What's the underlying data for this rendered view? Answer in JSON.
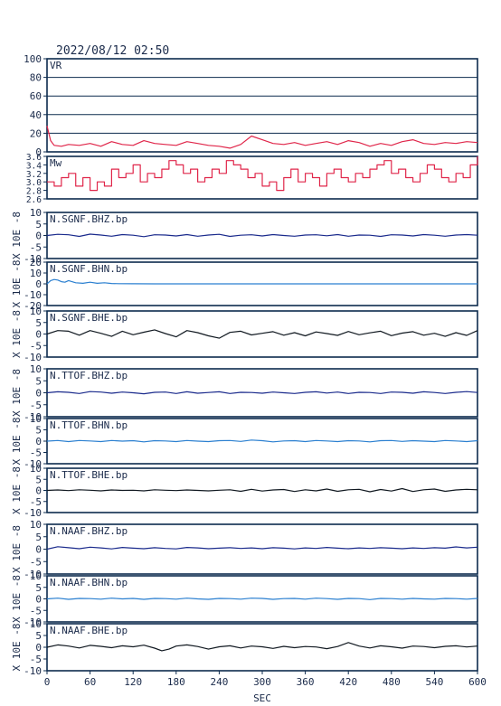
{
  "header": {
    "title": "2022/08/12  02:50"
  },
  "colors": {
    "frame": "#0d2b4e",
    "vr_line": "#e0264a",
    "mw_line": "#e0264a",
    "navy_trace": "#1a2a8c",
    "blue_trace": "#2a7fd0",
    "black_trace": "#101820",
    "gridline": "#0d2b4e"
  },
  "chart_data": [
    {
      "type": "line",
      "name": "VR",
      "label": "VR",
      "ylim": [
        0,
        100
      ],
      "yticks": [
        0,
        20,
        40,
        60,
        80,
        100
      ],
      "grid": true,
      "ylabel": "",
      "x": [
        0,
        5,
        10,
        20,
        30,
        45,
        60,
        75,
        90,
        105,
        120,
        135,
        150,
        165,
        180,
        195,
        210,
        225,
        240,
        255,
        270,
        285,
        300,
        315,
        330,
        345,
        360,
        375,
        390,
        405,
        420,
        435,
        450,
        465,
        480,
        495,
        510,
        525,
        540,
        555,
        570,
        585,
        600
      ],
      "values": [
        28,
        12,
        7,
        6,
        8,
        7,
        9,
        6,
        11,
        8,
        7,
        12,
        9,
        8,
        7,
        11,
        9,
        7,
        6,
        4,
        8,
        17,
        13,
        9,
        8,
        10,
        7,
        9,
        11,
        8,
        12,
        10,
        6,
        9,
        7,
        11,
        13,
        9,
        8,
        10,
        9,
        11,
        10
      ]
    },
    {
      "type": "line",
      "name": "Mw",
      "label": "Mw",
      "ylim": [
        2.6,
        3.6
      ],
      "yticks": [
        2.6,
        2.8,
        3.0,
        3.2,
        3.4,
        3.6
      ],
      "ytick_labels": [
        "2.6",
        "2.8",
        "3.0",
        "3.2",
        "3.4",
        "3.6"
      ],
      "ylabel": "",
      "x": [
        0,
        10,
        20,
        30,
        40,
        50,
        60,
        70,
        80,
        90,
        100,
        110,
        120,
        130,
        140,
        150,
        160,
        170,
        180,
        190,
        200,
        210,
        220,
        230,
        240,
        250,
        260,
        270,
        280,
        290,
        300,
        310,
        320,
        330,
        340,
        350,
        360,
        370,
        380,
        390,
        400,
        410,
        420,
        430,
        440,
        450,
        460,
        470,
        480,
        490,
        500,
        510,
        520,
        530,
        540,
        550,
        560,
        570,
        580,
        590,
        600
      ],
      "values": [
        3.0,
        2.9,
        3.1,
        3.2,
        2.9,
        3.1,
        2.8,
        3.0,
        2.9,
        3.3,
        3.1,
        3.2,
        3.4,
        3.0,
        3.2,
        3.1,
        3.3,
        3.5,
        3.4,
        3.2,
        3.3,
        3.0,
        3.1,
        3.3,
        3.2,
        3.5,
        3.4,
        3.3,
        3.1,
        3.2,
        2.9,
        3.0,
        2.8,
        3.1,
        3.3,
        3.0,
        3.2,
        3.1,
        2.9,
        3.2,
        3.3,
        3.1,
        3.0,
        3.2,
        3.1,
        3.3,
        3.4,
        3.5,
        3.2,
        3.3,
        3.1,
        3.0,
        3.2,
        3.4,
        3.3,
        3.1,
        3.0,
        3.2,
        3.1,
        3.4,
        3.6
      ]
    },
    {
      "type": "line",
      "name": "N.SGNF.BHZ.bp",
      "label": "N.SGNF.BHZ.bp",
      "ylim": [
        -10,
        10
      ],
      "yticks": [
        -10,
        -5,
        0,
        5,
        10
      ],
      "ylabel": "X 10E -8",
      "color_key": "navy_trace",
      "x": [
        0,
        15,
        30,
        45,
        60,
        75,
        90,
        105,
        120,
        135,
        150,
        165,
        180,
        195,
        210,
        225,
        240,
        255,
        270,
        285,
        300,
        315,
        330,
        345,
        360,
        375,
        390,
        405,
        420,
        435,
        450,
        465,
        480,
        495,
        510,
        525,
        540,
        555,
        570,
        585,
        600
      ],
      "values": [
        0,
        0.5,
        0.3,
        -0.4,
        0.6,
        0.2,
        -0.3,
        0.4,
        0.1,
        -0.5,
        0.3,
        0.2,
        -0.2,
        0.4,
        -0.3,
        0.2,
        0.5,
        -0.4,
        0.1,
        0.3,
        -0.2,
        0.4,
        0.0,
        -0.3,
        0.2,
        0.3,
        -0.1,
        0.4,
        -0.3,
        0.2,
        0.1,
        -0.4,
        0.3,
        0.2,
        -0.2,
        0.4,
        0.1,
        -0.3,
        0.2,
        0.4,
        0.1
      ]
    },
    {
      "type": "line",
      "name": "N.SGNF.BHN.bp",
      "label": "N.SGNF.BHN.bp",
      "ylim": [
        -20,
        20
      ],
      "yticks": [
        -20,
        -10,
        0,
        10,
        20
      ],
      "ylabel": "X 10E -8",
      "color_key": "blue_trace",
      "x": [
        0,
        5,
        10,
        15,
        20,
        25,
        30,
        40,
        50,
        60,
        70,
        80,
        90,
        100,
        120,
        150,
        200,
        250,
        300,
        350,
        400,
        450,
        500,
        550,
        600
      ],
      "values": [
        0,
        3,
        4,
        3.5,
        2,
        1.5,
        3,
        1,
        0.5,
        1.5,
        0.5,
        1,
        0.3,
        0.2,
        0.1,
        0,
        0,
        0,
        0,
        0,
        0,
        0,
        0,
        0,
        0
      ]
    },
    {
      "type": "line",
      "name": "N.SGNF.BHE.bp",
      "label": "N.SGNF.BHE.bp",
      "ylim": [
        -10,
        10
      ],
      "yticks": [
        -10,
        -5,
        0,
        5,
        10
      ],
      "ylabel": "X 10E -8",
      "color_key": "black_trace",
      "x": [
        0,
        15,
        30,
        45,
        60,
        75,
        90,
        105,
        120,
        135,
        150,
        165,
        180,
        195,
        210,
        225,
        240,
        255,
        270,
        285,
        300,
        315,
        330,
        345,
        360,
        375,
        390,
        405,
        420,
        435,
        450,
        465,
        480,
        495,
        510,
        525,
        540,
        555,
        570,
        585,
        600
      ],
      "values": [
        0,
        1.5,
        1.2,
        -0.5,
        1.5,
        0.3,
        -1,
        1.2,
        -0.3,
        0.8,
        1.8,
        0.2,
        -1.2,
        1.5,
        0.6,
        -0.8,
        -1.8,
        0.7,
        1.2,
        -0.4,
        0.3,
        1,
        -0.5,
        0.6,
        -0.8,
        0.9,
        0.2,
        -0.6,
        1.1,
        -0.3,
        0.5,
        1.2,
        -0.7,
        0.4,
        1,
        -0.5,
        0.3,
        -1,
        0.6,
        -0.6,
        1.5
      ]
    },
    {
      "type": "line",
      "name": "N.TTOF.BHZ.bp",
      "label": "N.TTOF.BHZ.bp",
      "ylim": [
        -10,
        10
      ],
      "yticks": [
        -10,
        -5,
        0,
        5,
        10
      ],
      "ylabel": "X 10E -8",
      "color_key": "navy_trace",
      "x": [
        0,
        15,
        30,
        45,
        60,
        75,
        90,
        105,
        120,
        135,
        150,
        165,
        180,
        195,
        210,
        225,
        240,
        255,
        270,
        285,
        300,
        315,
        330,
        345,
        360,
        375,
        390,
        405,
        420,
        435,
        450,
        465,
        480,
        495,
        510,
        525,
        540,
        555,
        570,
        585,
        600
      ],
      "values": [
        0,
        0.4,
        0.2,
        -0.3,
        0.5,
        0.3,
        -0.2,
        0.3,
        0,
        -0.4,
        0.2,
        0.3,
        -0.3,
        0.4,
        -0.2,
        0.1,
        0.4,
        -0.3,
        0.2,
        0.1,
        -0.2,
        0.3,
        0,
        -0.3,
        0.2,
        0.4,
        -0.1,
        0.3,
        -0.3,
        0.2,
        0.1,
        -0.3,
        0.3,
        0.2,
        -0.2,
        0.4,
        0.1,
        -0.3,
        0.2,
        0.5,
        0.1
      ]
    },
    {
      "type": "line",
      "name": "N.TTOF.BHN.bp",
      "label": "N.TTOF.BHN.bp",
      "ylim": [
        -10,
        10
      ],
      "yticks": [
        -10,
        -5,
        0,
        5,
        10
      ],
      "ylabel": "X 10E -8",
      "color_key": "blue_trace",
      "x": [
        0,
        15,
        30,
        45,
        60,
        75,
        90,
        105,
        120,
        135,
        150,
        165,
        180,
        195,
        210,
        225,
        240,
        255,
        270,
        285,
        300,
        315,
        330,
        345,
        360,
        375,
        390,
        405,
        420,
        435,
        450,
        465,
        480,
        495,
        510,
        525,
        540,
        555,
        570,
        585,
        600
      ],
      "values": [
        0,
        0.3,
        -0.2,
        0.3,
        0.1,
        -0.2,
        0.3,
        0,
        0.2,
        -0.3,
        0.2,
        0.1,
        -0.2,
        0.3,
        0,
        -0.2,
        0.2,
        0.3,
        -0.1,
        0.5,
        0.2,
        -0.3,
        0.1,
        0.2,
        -0.2,
        0.3,
        0.1,
        -0.2,
        0.2,
        0.1,
        -0.3,
        0.2,
        0.3,
        -0.1,
        0.2,
        0,
        -0.2,
        0.3,
        0.1,
        -0.2,
        0.2
      ]
    },
    {
      "type": "line",
      "name": "N.TTOF.BHE.bp",
      "label": "N.TTOF.BHE.bp",
      "ylim": [
        -10,
        10
      ],
      "yticks": [
        -10,
        -5,
        0,
        5,
        10
      ],
      "ylabel": "X 10E -8",
      "color_key": "black_trace",
      "x": [
        0,
        15,
        30,
        45,
        60,
        75,
        90,
        105,
        120,
        135,
        150,
        165,
        180,
        195,
        210,
        225,
        240,
        255,
        270,
        285,
        300,
        315,
        330,
        345,
        360,
        375,
        390,
        405,
        420,
        435,
        450,
        465,
        480,
        495,
        510,
        525,
        540,
        555,
        570,
        585,
        600
      ],
      "values": [
        0,
        0.2,
        -0.1,
        0.3,
        0.1,
        -0.2,
        0.2,
        0,
        0.1,
        -0.2,
        0.3,
        0.1,
        -0.1,
        0.2,
        0,
        -0.2,
        0.1,
        0.3,
        -0.4,
        0.5,
        -0.3,
        0.2,
        0.4,
        -0.5,
        0.3,
        -0.2,
        0.6,
        -0.4,
        0.3,
        0.5,
        -0.6,
        0.4,
        -0.3,
        0.8,
        -0.5,
        0.3,
        0.6,
        -0.4,
        0.2,
        0.5,
        0.3
      ]
    },
    {
      "type": "line",
      "name": "N.NAAF.BHZ.bp",
      "label": "N.NAAF.BHZ.bp",
      "ylim": [
        -10,
        10
      ],
      "yticks": [
        -10,
        -5,
        0,
        5,
        10
      ],
      "ylabel": "X 10E -8",
      "color_key": "navy_trace",
      "x": [
        0,
        15,
        30,
        45,
        60,
        75,
        90,
        105,
        120,
        135,
        150,
        165,
        180,
        195,
        210,
        225,
        240,
        255,
        270,
        285,
        300,
        315,
        330,
        345,
        360,
        375,
        390,
        405,
        420,
        435,
        450,
        465,
        480,
        495,
        510,
        525,
        540,
        555,
        570,
        585,
        600
      ],
      "values": [
        0,
        1,
        0.6,
        0.2,
        0.8,
        0.5,
        0.1,
        0.7,
        0.4,
        0.2,
        0.6,
        0.3,
        0.1,
        0.7,
        0.5,
        0.2,
        0.4,
        0.6,
        0.3,
        0.5,
        0.2,
        0.6,
        0.4,
        0.1,
        0.5,
        0.3,
        0.7,
        0.4,
        0.2,
        0.5,
        0.3,
        0.6,
        0.4,
        0.2,
        0.5,
        0.3,
        0.6,
        0.4,
        0.9,
        0.5,
        0.8
      ]
    },
    {
      "type": "line",
      "name": "N.NAAF.BHN.bp",
      "label": "N.NAAF.BHN.bp",
      "ylim": [
        -10,
        10
      ],
      "yticks": [
        -10,
        -5,
        0,
        5,
        10
      ],
      "ylabel": "X 10E -8",
      "color_key": "blue_trace",
      "x": [
        0,
        15,
        30,
        45,
        60,
        75,
        90,
        105,
        120,
        135,
        150,
        165,
        180,
        195,
        210,
        225,
        240,
        255,
        270,
        285,
        300,
        315,
        330,
        345,
        360,
        375,
        390,
        405,
        420,
        435,
        450,
        465,
        480,
        495,
        510,
        525,
        540,
        555,
        570,
        585,
        600
      ],
      "values": [
        0,
        0.3,
        -0.2,
        0.2,
        0.1,
        -0.1,
        0.3,
        0,
        0.2,
        -0.2,
        0.2,
        0.1,
        -0.1,
        0.3,
        0,
        -0.2,
        0.2,
        0.1,
        -0.1,
        0.3,
        0.2,
        -0.2,
        0.1,
        0.2,
        -0.1,
        0.3,
        0.1,
        -0.2,
        0.2,
        0.1,
        -0.3,
        0.2,
        0.1,
        -0.1,
        0.2,
        0,
        -0.1,
        0.2,
        0.1,
        -0.1,
        0.2
      ]
    },
    {
      "type": "line",
      "name": "N.NAAF.BHE.bp",
      "label": "N.NAAF.BHE.bp",
      "ylim": [
        -10,
        10
      ],
      "yticks": [
        -10,
        -5,
        0,
        5,
        10
      ],
      "ylabel": "X 10E -8",
      "color_key": "black_trace",
      "x": [
        0,
        15,
        30,
        45,
        60,
        75,
        90,
        105,
        120,
        135,
        150,
        160,
        170,
        180,
        195,
        210,
        225,
        240,
        255,
        270,
        285,
        300,
        315,
        330,
        345,
        360,
        375,
        390,
        405,
        420,
        435,
        450,
        465,
        480,
        495,
        510,
        525,
        540,
        555,
        570,
        585,
        600
      ],
      "values": [
        0,
        1,
        0.5,
        -0.3,
        0.8,
        0.4,
        -0.2,
        0.6,
        0.2,
        0.9,
        -0.4,
        -1.5,
        -0.8,
        0.5,
        1,
        0.3,
        -0.8,
        0.2,
        0.6,
        -0.3,
        0.5,
        0.2,
        -0.5,
        0.4,
        -0.2,
        0.3,
        0.1,
        -0.6,
        0.3,
        2,
        0.5,
        -0.3,
        0.6,
        0.2,
        -0.4,
        0.5,
        0.3,
        -0.2,
        0.4,
        0.6,
        0.1,
        0.5
      ]
    }
  ],
  "xaxis": {
    "label": "SEC",
    "xlim": [
      0,
      600
    ],
    "ticks": [
      0,
      60,
      120,
      180,
      240,
      300,
      360,
      420,
      480,
      540,
      600
    ]
  }
}
